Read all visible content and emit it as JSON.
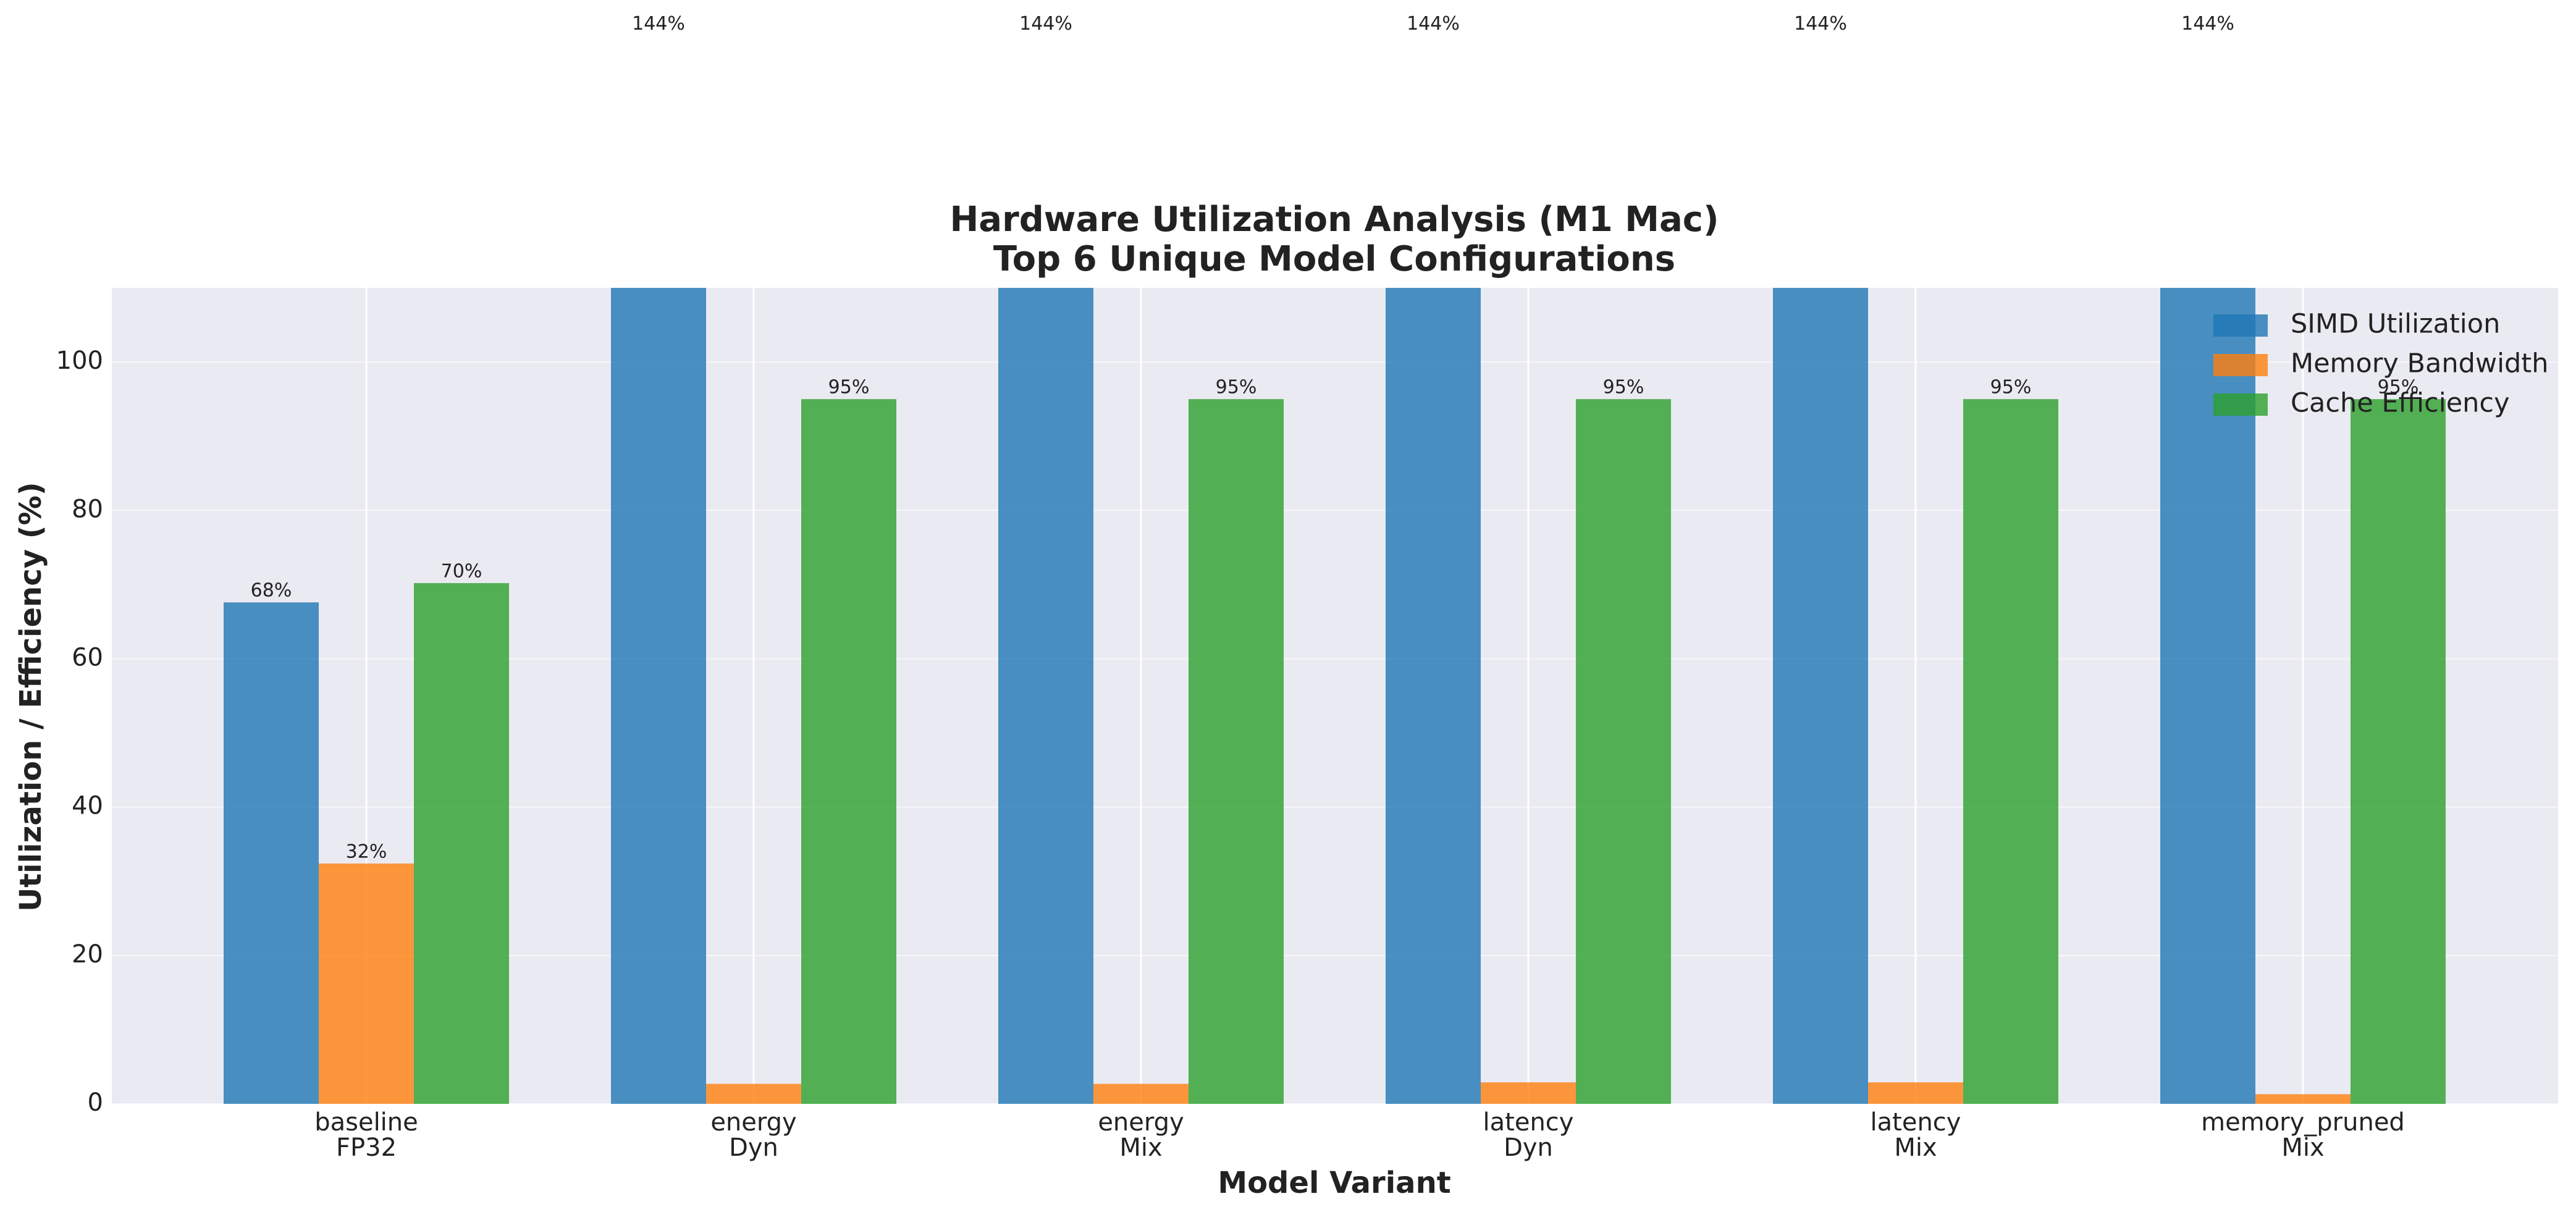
{
  "chart_data": {
    "type": "bar",
    "title": "Hardware Utilization Analysis (M1 Mac)",
    "subtitle": "Top 6 Unique Model Configurations",
    "x_label": "Model Variant",
    "y_label": "Utilization / Efficiency (%)",
    "categories": [
      [
        "baseline",
        "FP32"
      ],
      [
        "energy",
        "Dyn"
      ],
      [
        "energy",
        "Mix"
      ],
      [
        "latency",
        "Dyn"
      ],
      [
        "latency",
        "Mix"
      ],
      [
        "memory_pruned",
        "Mix"
      ]
    ],
    "series": [
      {
        "name": "SIMD Utilization",
        "color": "#1f77b4",
        "values": [
          67.6,
          144,
          144,
          144,
          144,
          144
        ],
        "value_labels": [
          "68%",
          "144%",
          "144%",
          "144%",
          "144%",
          "144%"
        ]
      },
      {
        "name": "Memory Bandwidth",
        "color": "#ff7f0e",
        "values": [
          32.4,
          2.7,
          2.7,
          2.9,
          2.9,
          1.3
        ],
        "value_labels": [
          "32%",
          null,
          null,
          null,
          null,
          null
        ]
      },
      {
        "name": "Cache Efficiency",
        "color": "#2ca02c",
        "values": [
          70.2,
          95,
          95,
          95,
          95,
          95
        ],
        "value_labels": [
          "70%",
          "95%",
          "95%",
          "95%",
          "95%",
          "95%"
        ]
      }
    ],
    "ylim": [
      0,
      110
    ],
    "yticks": [
      0,
      20,
      40,
      60,
      80,
      100
    ],
    "grid": true,
    "legend": "upper right"
  }
}
